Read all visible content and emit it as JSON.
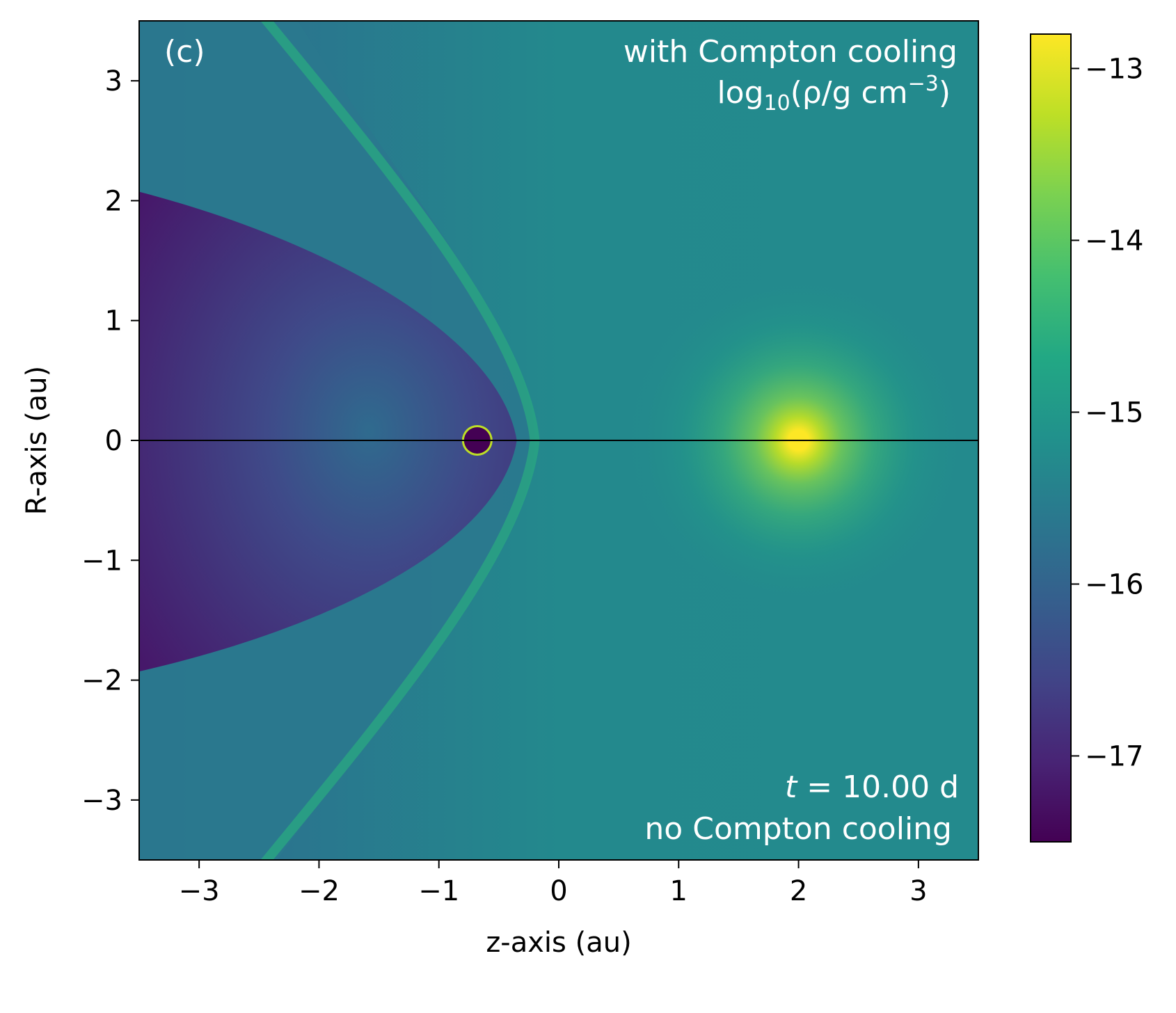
{
  "chart_data": {
    "type": "heatmap",
    "panel_label": "(c)",
    "xlabel": "z-axis (au)",
    "ylabel": "R-axis (au)",
    "xlim": [
      -3.5,
      3.5
    ],
    "ylim": [
      -3.5,
      3.5
    ],
    "xticks": [
      -3,
      -2,
      -1,
      0,
      1,
      2,
      3
    ],
    "yticks": [
      -3,
      -2,
      -1,
      0,
      1,
      2,
      3
    ],
    "xtick_labels": [
      "−3",
      "−2",
      "−1",
      "0",
      "1",
      "2",
      "3"
    ],
    "ytick_labels": [
      "−3",
      "−2",
      "−1",
      "0",
      "1",
      "2",
      "3"
    ],
    "colormap": "viridis",
    "colorbar": {
      "range": [
        -17.5,
        -12.8
      ],
      "ticks": [
        -13,
        -14,
        -15,
        -16,
        -17
      ],
      "tick_labels": [
        "−13",
        "−14",
        "−15",
        "−16",
        "−17"
      ]
    },
    "annotations": {
      "top_right_line1": "with Compton cooling",
      "quantity_prefix": "log",
      "quantity_sub": "10",
      "quantity_mid": "(ρ/g cm",
      "quantity_sup": "−3",
      "quantity_close": ")",
      "time_var": "t",
      "time_eq": " = 10.00 d",
      "bottom_right_line2": "no Compton cooling"
    },
    "features": {
      "midplane_line_y": 0,
      "dark_sphere": {
        "z": -0.68,
        "R": 0,
        "value": -17.4
      },
      "bright_source": {
        "z": 2.0,
        "R": 0,
        "value": -12.9
      },
      "bow_shock_apex_z": -0.2,
      "background_value": -15.4,
      "cavity_value": -17.0
    }
  }
}
